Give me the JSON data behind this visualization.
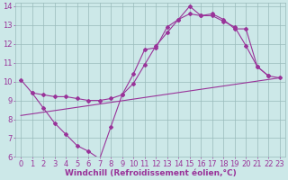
{
  "background_color": "#cce8e8",
  "grid_color": "#99bbbb",
  "line_color": "#993399",
  "xlabel": "Windchill (Refroidissement éolien,°C)",
  "xlim": [
    -0.5,
    23.5
  ],
  "ylim": [
    6,
    14.2
  ],
  "yticks": [
    6,
    7,
    8,
    9,
    10,
    11,
    12,
    13,
    14
  ],
  "xticks": [
    0,
    1,
    2,
    3,
    4,
    5,
    6,
    7,
    8,
    9,
    10,
    11,
    12,
    13,
    14,
    15,
    16,
    17,
    18,
    19,
    20,
    21,
    22,
    23
  ],
  "line1_x": [
    0,
    1,
    2,
    3,
    4,
    5,
    6,
    7,
    8,
    9,
    10,
    11,
    12,
    13,
    14,
    15,
    16,
    17,
    18,
    19,
    20,
    21,
    22
  ],
  "line1_y": [
    10.1,
    9.4,
    8.6,
    7.8,
    7.2,
    6.6,
    6.3,
    5.9,
    7.6,
    9.3,
    10.4,
    11.7,
    11.8,
    12.9,
    13.3,
    14.0,
    13.5,
    13.5,
    13.2,
    12.9,
    11.9,
    10.8,
    10.3
  ],
  "line2_x": [
    1,
    2,
    3,
    4,
    5,
    6,
    7,
    8,
    9,
    10,
    11,
    12,
    13,
    14,
    15,
    16,
    17,
    18,
    19,
    20,
    21,
    22,
    23
  ],
  "line2_y": [
    9.4,
    9.3,
    9.2,
    9.2,
    9.1,
    9.0,
    9.0,
    9.1,
    9.3,
    9.9,
    10.9,
    11.9,
    12.6,
    13.3,
    13.6,
    13.5,
    13.6,
    13.3,
    12.8,
    12.8,
    10.8,
    10.3,
    10.2
  ],
  "line3_x": [
    0,
    23
  ],
  "line3_y": [
    8.2,
    10.2
  ],
  "tick_fontsize": 6,
  "xlabel_fontsize": 6.5
}
